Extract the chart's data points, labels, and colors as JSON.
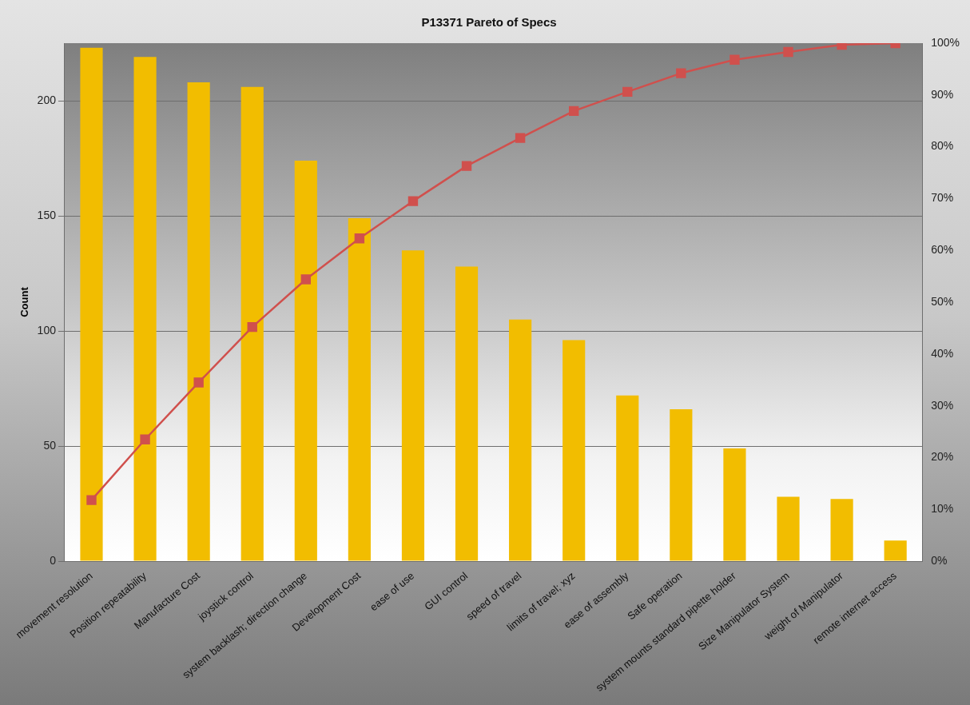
{
  "chart_data": {
    "type": "bar",
    "title": "P13371 Pareto of Specs",
    "ylabel": "Count",
    "categories": [
      "movement resolution",
      "Position repeatability",
      "Manufacture Cost",
      "joystick control",
      "system backlash; direction change",
      "Development Cost",
      "ease of use",
      "GUI control",
      "speed of travel",
      "limits of travel; xyz",
      "ease of assembly",
      "Safe operation",
      "system mounts standard pipette holder",
      "Size Manipulator System",
      "weight of Manipulator",
      "remote internet access"
    ],
    "series": [
      {
        "color": "#f2bd00",
        "values": [
          223,
          219,
          208,
          206,
          174,
          149,
          135,
          128,
          105,
          96,
          72,
          66,
          49,
          28,
          27,
          9
        ]
      },
      {
        "type": "line",
        "axis": "y2",
        "color": "#d0504d",
        "values": [
          11.8,
          23.5,
          34.5,
          45.2,
          54.4,
          62.3,
          69.5,
          76.3,
          81.7,
          86.9,
          90.6,
          94.2,
          96.8,
          98.3,
          99.7,
          100
        ]
      }
    ],
    "ylim": [
      0,
      225
    ],
    "yticks": [
      0,
      50,
      100,
      150,
      200
    ],
    "y2lim": [
      0,
      100
    ],
    "y2ticks": [
      {
        "value": 0,
        "label": "0%"
      },
      {
        "value": 10,
        "label": "10%"
      },
      {
        "value": 20,
        "label": "20%"
      },
      {
        "value": 30,
        "label": "30%"
      },
      {
        "value": 40,
        "label": "40%"
      },
      {
        "value": 50,
        "label": "50%"
      },
      {
        "value": 60,
        "label": "60%"
      },
      {
        "value": 70,
        "label": "70%"
      },
      {
        "value": 80,
        "label": "80%"
      },
      {
        "value": 90,
        "label": "90%"
      },
      {
        "value": 100,
        "label": "100%"
      }
    ],
    "grid": "y",
    "marker": "square",
    "line_style": "solid"
  }
}
